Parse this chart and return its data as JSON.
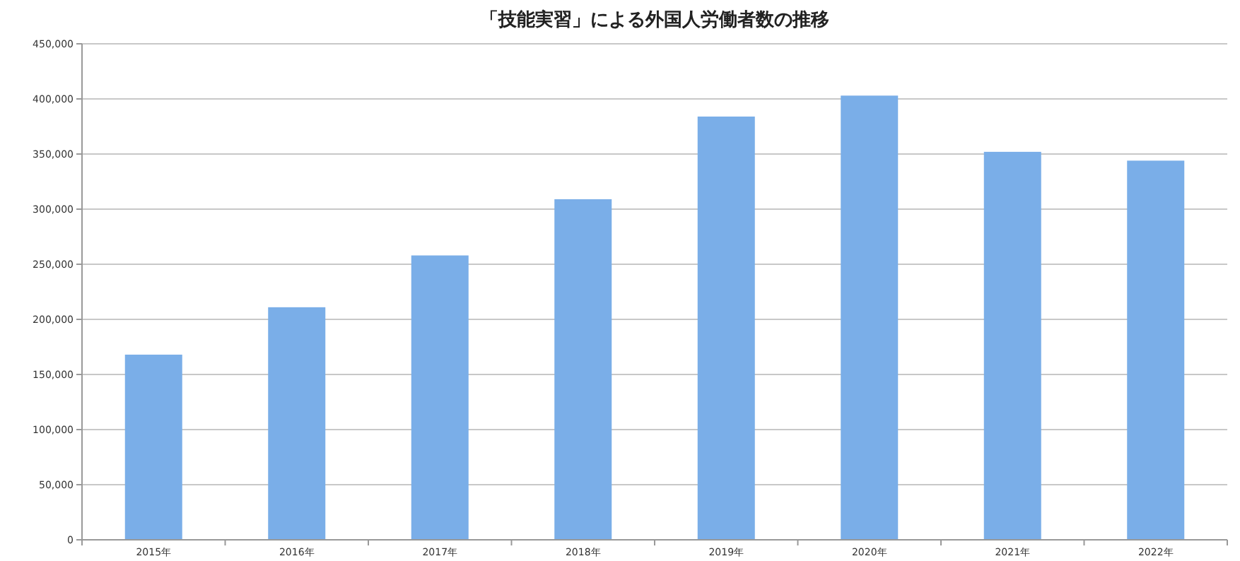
{
  "chart_data": {
    "type": "bar",
    "title": "「技能実習」による外国人労働者数の推移",
    "categories": [
      "2015年",
      "2016年",
      "2017年",
      "2018年",
      "2019年",
      "2020年",
      "2021年",
      "2022年"
    ],
    "values": [
      168000,
      211000,
      258000,
      309000,
      384000,
      403000,
      352000,
      344000
    ],
    "color": "#7aaee8",
    "ylim": [
      0,
      450000
    ],
    "yticks": [
      0,
      {
        "value": 50000,
        "label": "50,000"
      },
      {
        "value": 100000,
        "label": "100,000"
      },
      {
        "value": 150000,
        "label": "150,000"
      },
      {
        "value": 200000,
        "label": "200,000"
      },
      {
        "value": 250000,
        "label": "250,000"
      },
      {
        "value": 300000,
        "label": "300,000"
      },
      {
        "value": 350000,
        "label": "350,000"
      },
      {
        "value": 400000,
        "label": "400,000"
      },
      {
        "value": 450000,
        "label": "450,000"
      }
    ],
    "grid": "y"
  }
}
